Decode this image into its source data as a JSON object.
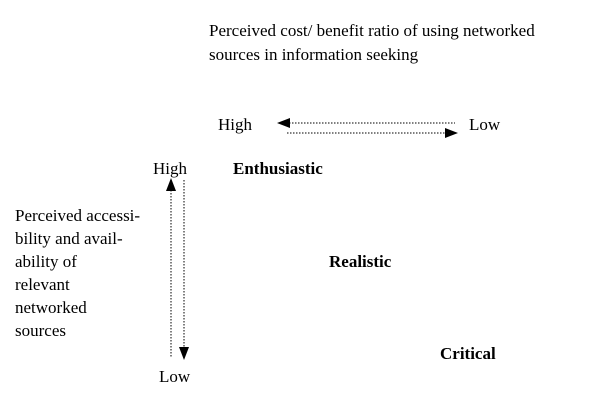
{
  "diagram": {
    "top_axis": {
      "title_line1": "Perceived cost/ benefit ratio of using networked",
      "title_line2": "sources in information seeking",
      "high_label": "High",
      "low_label": "Low"
    },
    "left_axis": {
      "high_label": "High",
      "low_label": "Low",
      "title_lines": [
        "Perceived accessi-",
        "bility and avail-",
        "ability of",
        "relevant",
        "networked",
        "sources"
      ]
    },
    "categories": {
      "enthusiastic": "Enthusiastic",
      "realistic": "Realistic",
      "critical": "Critical"
    }
  }
}
